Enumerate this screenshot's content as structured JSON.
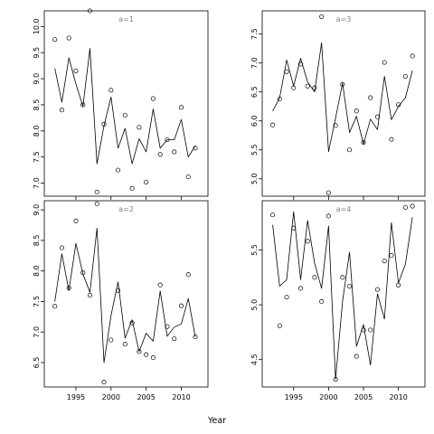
{
  "chart_data": {
    "type": "scatter",
    "xlabel": "Year",
    "panels": [
      {
        "title": "a=1",
        "ylim": [
          6.75,
          10.3
        ],
        "yticks": [
          7.0,
          7.5,
          8.0,
          8.5,
          9.0,
          9.5,
          10.0
        ],
        "ytick_labels": [
          "7.0",
          "7.5",
          "8.0",
          "8.5",
          "9.0",
          "9.5",
          "10.0"
        ],
        "show_x_labels": false,
        "points": {
          "x": [
            1992,
            1993,
            1994,
            1995,
            1996,
            1997,
            1998,
            1999,
            2000,
            2001,
            2002,
            2003,
            2004,
            2005,
            2006,
            2007,
            2008,
            2009,
            2010,
            2011,
            2012
          ],
          "y": [
            9.75,
            8.4,
            9.78,
            9.15,
            8.5,
            10.3,
            6.83,
            8.13,
            8.78,
            7.25,
            8.3,
            6.9,
            8.07,
            7.02,
            8.62,
            7.55,
            7.83,
            7.6,
            8.45,
            7.12,
            7.67
          ]
        },
        "fitted": {
          "x": [
            1992,
            1993,
            1994,
            1995,
            1996,
            1997,
            1998,
            1999,
            2000,
            2001,
            2002,
            2003,
            2004,
            2005,
            2006,
            2007,
            2008,
            2009,
            2010,
            2011,
            2012
          ],
          "y": [
            9.2,
            8.55,
            9.4,
            8.9,
            8.47,
            9.58,
            7.37,
            8.1,
            8.65,
            7.67,
            8.05,
            7.37,
            7.85,
            7.6,
            8.42,
            7.67,
            7.83,
            7.83,
            8.22,
            7.5,
            7.72
          ]
        }
      },
      {
        "title": "a=3",
        "ylim": [
          4.7,
          7.9
        ],
        "yticks": [
          5.0,
          5.5,
          6.0,
          6.5,
          7.0,
          7.5
        ],
        "ytick_labels": [
          "5.0",
          "5.5",
          "6.0",
          "6.5",
          "7.0",
          "7.5"
        ],
        "show_x_labels": false,
        "points": {
          "x": [
            1992,
            1993,
            1994,
            1995,
            1996,
            1997,
            1998,
            1999,
            2000,
            2001,
            2002,
            2003,
            2004,
            2005,
            2006,
            2007,
            2008,
            2009,
            2010,
            2011,
            2012
          ],
          "y": [
            5.93,
            6.38,
            6.85,
            6.57,
            6.98,
            6.6,
            6.57,
            7.8,
            4.76,
            5.92,
            6.63,
            5.5,
            6.17,
            5.63,
            6.4,
            6.07,
            7.01,
            5.68,
            6.28,
            6.77,
            7.12
          ]
        },
        "fitted": {
          "x": [
            1992,
            1993,
            1994,
            1995,
            1996,
            1997,
            1998,
            1999,
            2000,
            2001,
            2002,
            2003,
            2004,
            2005,
            2006,
            2007,
            2008,
            2009,
            2010,
            2011,
            2012
          ],
          "y": [
            6.17,
            6.4,
            7.05,
            6.6,
            7.08,
            6.67,
            6.5,
            7.35,
            5.47,
            6.05,
            6.65,
            5.8,
            6.08,
            5.6,
            6.03,
            5.85,
            6.77,
            6.02,
            6.25,
            6.4,
            6.87
          ]
        }
      },
      {
        "title": "a=2",
        "ylim": [
          6.1,
          9.15
        ],
        "yticks": [
          6.5,
          7.0,
          7.5,
          8.0,
          8.5,
          9.0
        ],
        "ytick_labels": [
          "6.5",
          "7.0",
          "7.5",
          "8.0",
          "8.5",
          "9.0"
        ],
        "show_x_labels": true,
        "points": {
          "x": [
            1992,
            1993,
            1994,
            1995,
            1996,
            1997,
            1998,
            1999,
            2000,
            2001,
            2002,
            2003,
            2004,
            2005,
            2006,
            2007,
            2008,
            2009,
            2010,
            2011,
            2012
          ],
          "y": [
            7.42,
            8.38,
            7.72,
            8.82,
            7.97,
            7.6,
            9.1,
            6.18,
            6.87,
            7.68,
            6.8,
            7.15,
            6.68,
            6.63,
            6.58,
            7.77,
            7.09,
            6.89,
            7.43,
            7.94,
            6.92
          ]
        },
        "fitted": {
          "x": [
            1992,
            1993,
            1994,
            1995,
            1996,
            1997,
            1998,
            1999,
            2000,
            2001,
            2002,
            2003,
            2004,
            2005,
            2006,
            2007,
            2008,
            2009,
            2010,
            2011,
            2012
          ],
          "y": [
            7.5,
            8.28,
            7.68,
            8.45,
            7.95,
            7.65,
            8.7,
            6.5,
            7.27,
            7.82,
            6.9,
            7.2,
            6.68,
            6.98,
            6.85,
            7.67,
            6.93,
            7.08,
            7.13,
            7.55,
            6.92
          ]
        }
      },
      {
        "title": "a=4",
        "ylim": [
          4.25,
          5.95
        ],
        "yticks": [
          4.5,
          5.0,
          5.5
        ],
        "ytick_labels": [
          "4.5",
          "5.0",
          "5.5"
        ],
        "show_x_labels": true,
        "points": {
          "x": [
            1992,
            1993,
            1994,
            1995,
            1996,
            1997,
            1998,
            1999,
            2000,
            2001,
            2002,
            2003,
            2004,
            2005,
            2006,
            2007,
            2008,
            2009,
            2010,
            2011,
            2012
          ],
          "y": [
            5.82,
            4.81,
            5.07,
            5.7,
            5.15,
            5.58,
            5.25,
            5.03,
            5.81,
            4.32,
            5.25,
            5.17,
            4.53,
            4.77,
            4.77,
            5.14,
            5.4,
            5.45,
            5.18,
            5.89,
            5.9
          ]
        },
        "fitted": {
          "x": [
            1992,
            1993,
            1994,
            1995,
            1996,
            1997,
            1998,
            1999,
            2000,
            2001,
            2002,
            2003,
            2004,
            2005,
            2006,
            2007,
            2008,
            2009,
            2010,
            2011,
            2012
          ],
          "y": [
            5.73,
            5.17,
            5.23,
            5.85,
            5.23,
            5.77,
            5.38,
            5.15,
            5.72,
            4.32,
            5.03,
            5.48,
            4.62,
            4.82,
            4.45,
            5.1,
            4.87,
            5.75,
            5.2,
            5.37,
            5.8
          ]
        }
      }
    ],
    "xlim": [
      1990.5,
      2013.8
    ],
    "xticks": [
      1995,
      2000,
      2005,
      2010
    ],
    "xtick_labels": [
      "1995",
      "2000",
      "2005",
      "2010"
    ],
    "grid": false,
    "legend": "none"
  }
}
